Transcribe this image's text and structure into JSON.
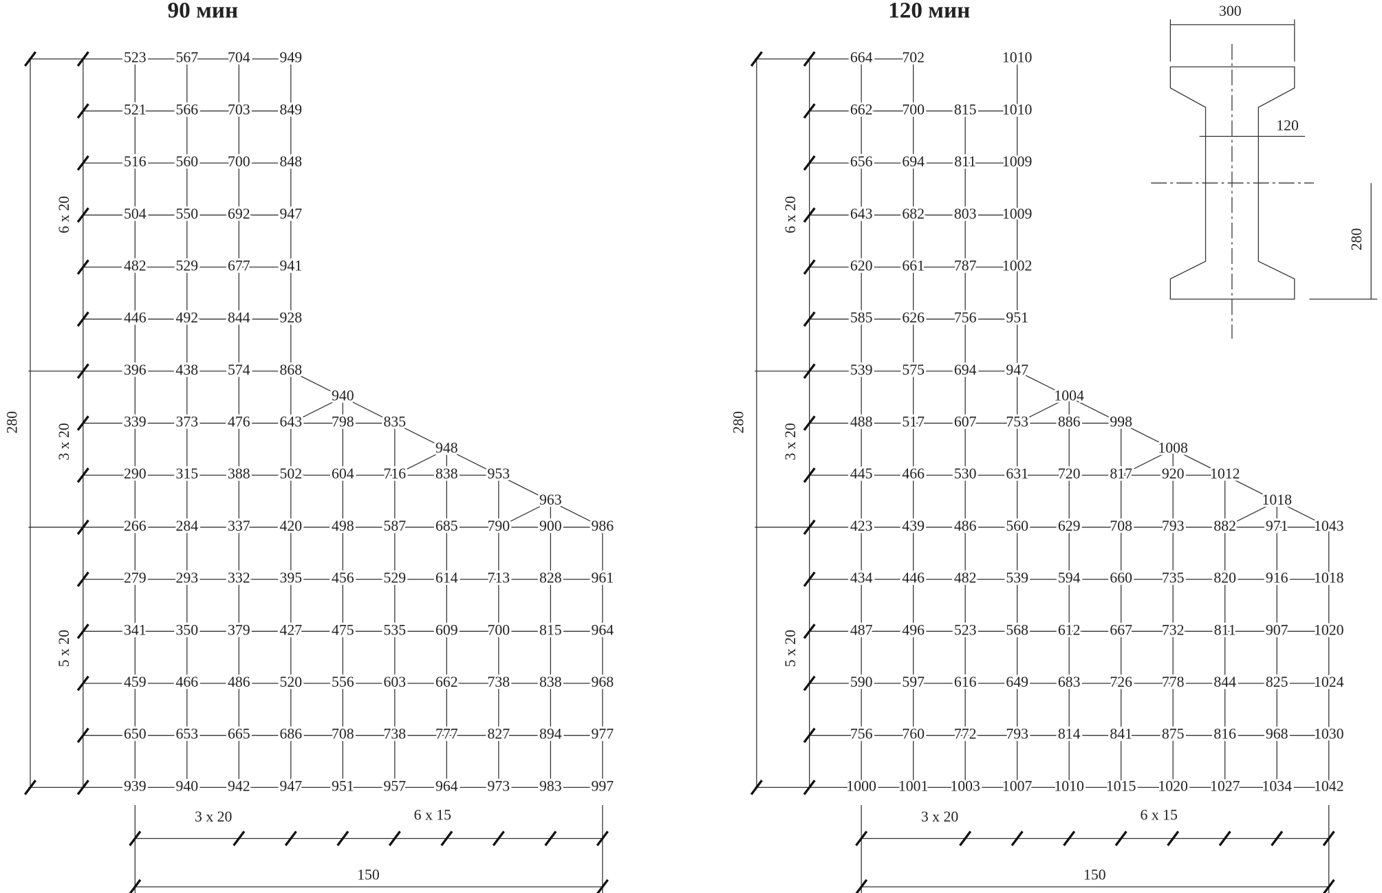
{
  "panels": [
    {
      "title": "90 мин",
      "rows": [
        [
          523,
          567,
          704,
          949
        ],
        [
          521,
          566,
          703,
          849
        ],
        [
          516,
          560,
          700,
          848
        ],
        [
          504,
          550,
          692,
          947
        ],
        [
          482,
          529,
          677,
          941
        ],
        [
          446,
          492,
          844,
          928
        ],
        [
          396,
          438,
          574,
          868
        ],
        [
          339,
          373,
          476,
          643,
          798,
          835
        ],
        [
          290,
          315,
          388,
          502,
          604,
          716,
          838,
          953
        ],
        [
          266,
          284,
          337,
          420,
          498,
          587,
          685,
          790,
          900,
          986
        ],
        [
          279,
          293,
          332,
          395,
          456,
          529,
          614,
          713,
          828,
          961
        ],
        [
          341,
          350,
          379,
          427,
          475,
          535,
          609,
          700,
          815,
          964
        ],
        [
          459,
          466,
          486,
          520,
          556,
          603,
          662,
          738,
          838,
          968
        ],
        [
          650,
          653,
          665,
          686,
          708,
          738,
          777,
          827,
          894,
          977
        ],
        [
          939,
          940,
          942,
          947,
          951,
          957,
          964,
          973,
          983,
          997
        ]
      ],
      "apex": [
        940,
        948,
        963
      ],
      "dims": {
        "height": "280",
        "left": [
          "6 x 20",
          "3 x 20",
          "5 x 20"
        ],
        "bottom": [
          "3 x 20",
          "6 x 15"
        ],
        "width": "150"
      }
    },
    {
      "title": "120 мин",
      "rows": [
        [
          664,
          702,
          null,
          1010
        ],
        [
          662,
          700,
          815,
          1010
        ],
        [
          656,
          694,
          811,
          1009
        ],
        [
          643,
          682,
          803,
          1009
        ],
        [
          620,
          661,
          787,
          1002
        ],
        [
          585,
          626,
          756,
          951
        ],
        [
          539,
          575,
          694,
          947
        ],
        [
          488,
          517,
          607,
          753,
          886,
          998
        ],
        [
          445,
          466,
          530,
          631,
          720,
          817,
          920,
          1012
        ],
        [
          423,
          439,
          486,
          560,
          629,
          708,
          793,
          882,
          971,
          1043
        ],
        [
          434,
          446,
          482,
          539,
          594,
          660,
          735,
          820,
          916,
          1018
        ],
        [
          487,
          496,
          523,
          568,
          612,
          667,
          732,
          811,
          907,
          1020
        ],
        [
          590,
          597,
          616,
          649,
          683,
          726,
          778,
          844,
          825,
          1024
        ],
        [
          756,
          760,
          772,
          793,
          814,
          841,
          875,
          816,
          968,
          1030
        ],
        [
          1000,
          1001,
          1003,
          1007,
          1010,
          1015,
          1020,
          1027,
          1034,
          1042
        ]
      ],
      "apex": [
        1004,
        1008,
        1018
      ],
      "dims": {
        "height": "280",
        "left": [
          "6 x 20",
          "3 x 20",
          "5 x 20"
        ],
        "bottom": [
          "3 x 20",
          "6 x 15"
        ],
        "width": "150"
      }
    }
  ],
  "section": {
    "width": "300",
    "web": "120",
    "height": "280"
  }
}
